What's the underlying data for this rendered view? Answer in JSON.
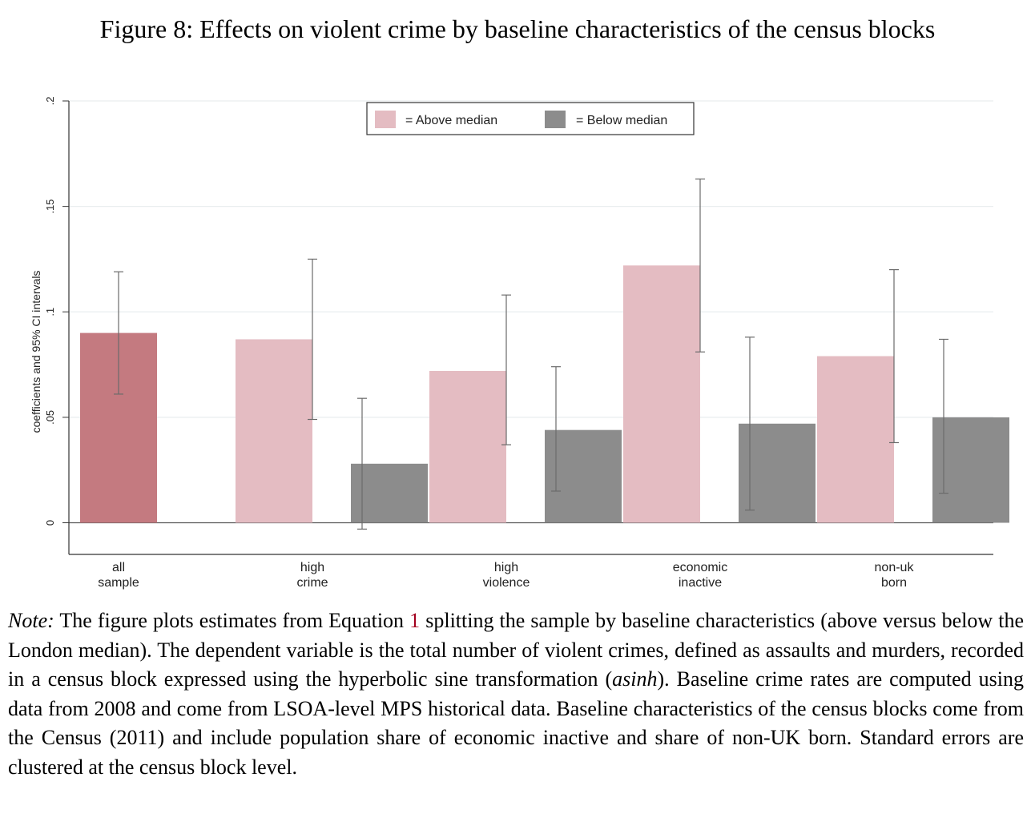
{
  "figure_title": "Figure 8: Effects on violent crime by baseline characteristics of the census blocks",
  "chart_data": {
    "type": "bar",
    "title": "",
    "xlabel": "",
    "ylabel": "coefficients and 95% CI intervals",
    "ylim": [
      -0.015,
      0.2
    ],
    "yticks": [
      0,
      0.05,
      0.1,
      0.15,
      0.2
    ],
    "ytick_labels": [
      "0",
      ".05",
      ".1",
      ".15",
      ".2"
    ],
    "grid": true,
    "legend_placement": "top-center",
    "categories": [
      {
        "lines": [
          "all",
          "sample"
        ]
      },
      {
        "lines": [
          "high",
          "crime"
        ]
      },
      {
        "lines": [
          "high",
          "violence"
        ]
      },
      {
        "lines": [
          "economic",
          "inactive"
        ]
      },
      {
        "lines": [
          "non-uk",
          "born"
        ]
      }
    ],
    "series": [
      {
        "name": "= Above median",
        "color": "#e4bcc2",
        "values": [
          null,
          0.087,
          0.072,
          0.122,
          0.079
        ],
        "ci_low": [
          null,
          0.049,
          0.037,
          0.081,
          0.038
        ],
        "ci_high": [
          null,
          0.125,
          0.108,
          0.163,
          0.12
        ]
      },
      {
        "name": "= Below median",
        "color": "#8c8c8c",
        "values": [
          null,
          0.028,
          0.044,
          0.047,
          0.05
        ],
        "ci_low": [
          null,
          -0.003,
          0.015,
          0.006,
          0.014
        ],
        "ci_high": [
          null,
          0.059,
          0.074,
          0.088,
          0.087
        ]
      }
    ],
    "all_sample": {
      "value": 0.09,
      "ci_low": 0.061,
      "ci_high": 0.119,
      "color": "#c47a80"
    }
  },
  "note": {
    "lead": "Note:",
    "part1": " The figure plots estimates from Equation ",
    "ref": "1",
    "part2": " splitting the sample by baseline characteristics (above versus below the London median). The dependent variable is the total number of violent crimes, defined as assaults and murders, recorded in a census block expressed using the hyperbolic sine transformation (",
    "asinh": "asinh",
    "part3": ").  Baseline crime rates are computed using data from 2008 and come from LSOA-level MPS historical data. Baseline characteristics of the census blocks come from the Census (2011) and include population share of economic inactive and share of non-UK born.  Standard errors are clustered at the census block level."
  }
}
